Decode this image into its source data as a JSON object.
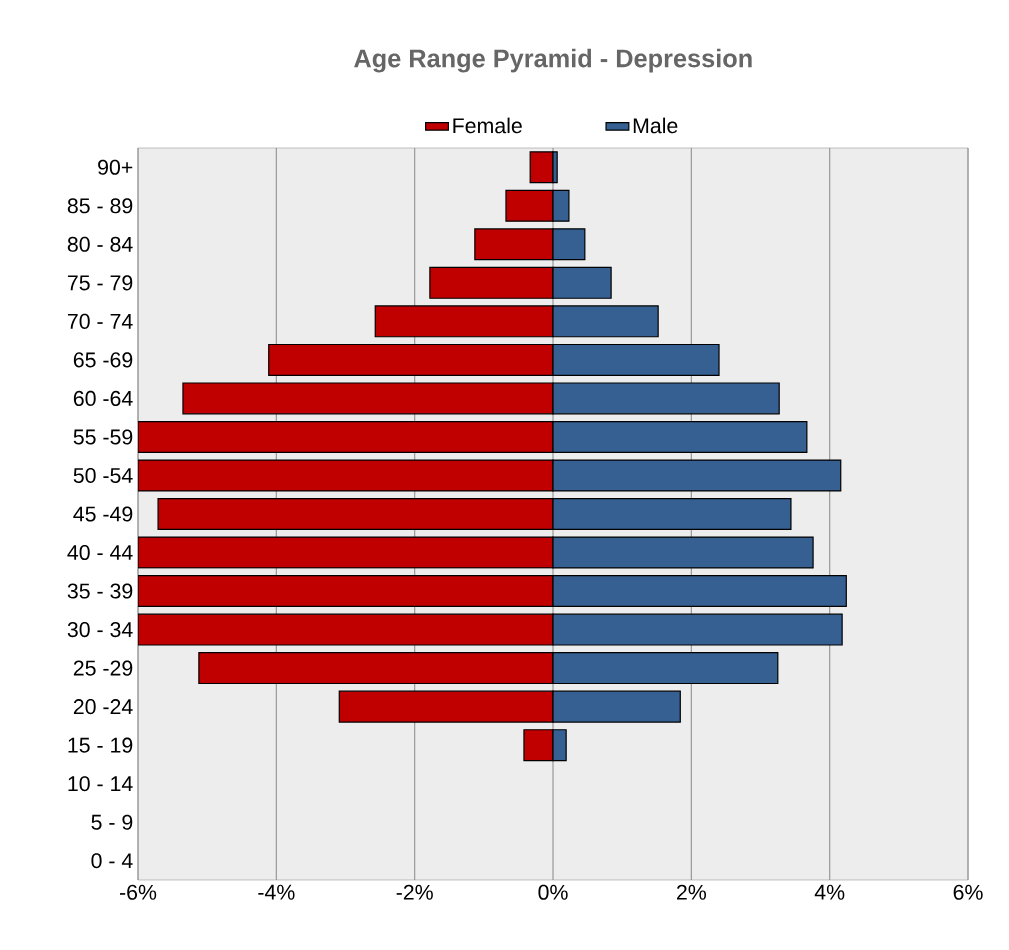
{
  "chart_data": {
    "type": "bar",
    "orientation": "horizontal",
    "title": "Age Range Pyramid - Depression",
    "categories": [
      "90+",
      "85 - 89",
      "80 - 84",
      "75 - 79",
      "70 - 74",
      "65 -69",
      "60 -64",
      "55 -59",
      "50 -54",
      "45 -49",
      "40 - 44",
      "35 - 39",
      "30 - 34",
      "25 -29",
      "20 -24",
      "15 - 19",
      "10 - 14",
      "5 - 9",
      "0 - 4"
    ],
    "series": [
      {
        "name": "Female",
        "color": "#c00000",
        "values": [
          -0.33,
          -0.68,
          -1.13,
          -1.78,
          -2.57,
          -4.11,
          -5.35,
          -6,
          -6,
          -5.71,
          -6,
          -6,
          -6,
          -5.12,
          -3.09,
          -0.42,
          null,
          null,
          null
        ]
      },
      {
        "name": "Male",
        "color": "#376092",
        "values": [
          0.06,
          0.23,
          0.46,
          0.84,
          1.52,
          2.4,
          3.27,
          3.67,
          4.16,
          3.44,
          3.76,
          4.24,
          4.18,
          3.25,
          1.84,
          0.19,
          null,
          null,
          null
        ]
      }
    ],
    "xlim": [
      -6,
      6
    ],
    "xticks": [
      {
        "value": -6,
        "label": "-6%"
      },
      {
        "value": -4,
        "label": "-4%"
      },
      {
        "value": -2,
        "label": "-2%"
      },
      {
        "value": 0,
        "label": "0%"
      },
      {
        "value": 2,
        "label": "2%"
      },
      {
        "value": 4,
        "label": "4%"
      },
      {
        "value": 6,
        "label": "6%"
      }
    ],
    "grid": "x",
    "legend": "top",
    "stacked": true
  }
}
